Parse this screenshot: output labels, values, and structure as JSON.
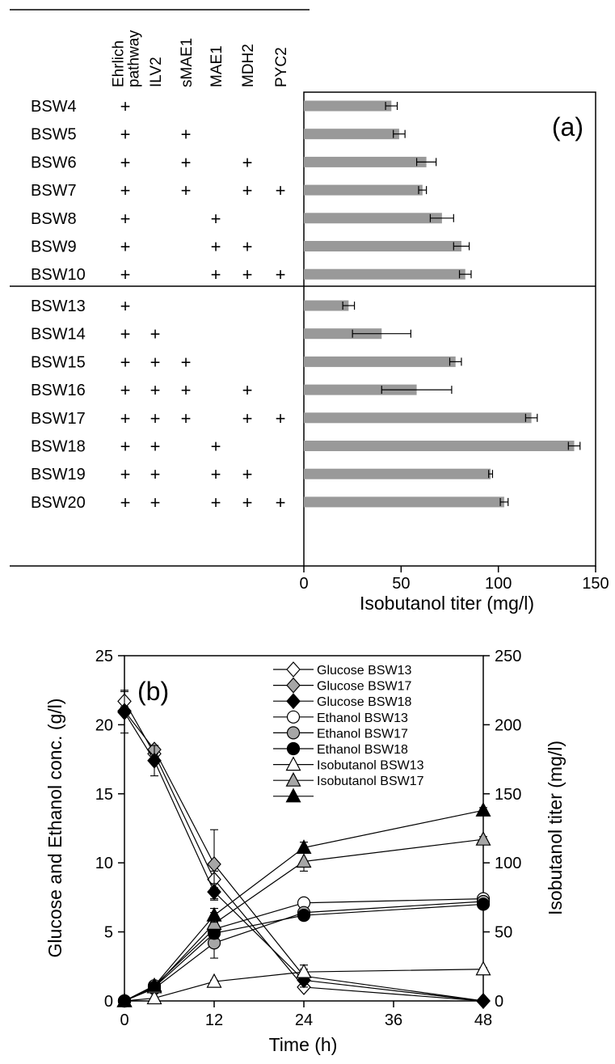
{
  "chart_data": [
    {
      "type": "bar",
      "panel_label": "(a)",
      "orientation": "horizontal",
      "xlabel": "Isobutanol titer (mg/l)",
      "xlim": [
        0,
        150
      ],
      "xticks": [
        0,
        50,
        100,
        150
      ],
      "bar_color": "#999999",
      "gene_columns": [
        "Ehrlich\npathway",
        "ILV2",
        "sMAE1",
        "MAE1",
        "MDH2",
        "PYC2"
      ],
      "mark_symbol": "+",
      "strains": [
        {
          "name": "BSW4",
          "genes": [
            1,
            0,
            0,
            0,
            0,
            0
          ],
          "value": 45,
          "error": 3
        },
        {
          "name": "BSW5",
          "genes": [
            1,
            0,
            1,
            0,
            0,
            0
          ],
          "value": 49,
          "error": 3
        },
        {
          "name": "BSW6",
          "genes": [
            1,
            0,
            1,
            0,
            1,
            0
          ],
          "value": 63,
          "error": 5
        },
        {
          "name": "BSW7",
          "genes": [
            1,
            0,
            1,
            0,
            1,
            1
          ],
          "value": 61,
          "error": 2
        },
        {
          "name": "BSW8",
          "genes": [
            1,
            0,
            0,
            1,
            0,
            0
          ],
          "value": 71,
          "error": 6
        },
        {
          "name": "BSW9",
          "genes": [
            1,
            0,
            0,
            1,
            1,
            0
          ],
          "value": 81,
          "error": 4
        },
        {
          "name": "BSW10",
          "genes": [
            1,
            0,
            0,
            1,
            1,
            1
          ],
          "value": 83,
          "error": 3
        },
        {
          "name": "BSW13",
          "genes": [
            1,
            0,
            0,
            0,
            0,
            0
          ],
          "value": 23,
          "error": 3
        },
        {
          "name": "BSW14",
          "genes": [
            1,
            1,
            0,
            0,
            0,
            0
          ],
          "value": 40,
          "error": 15
        },
        {
          "name": "BSW15",
          "genes": [
            1,
            1,
            1,
            0,
            0,
            0
          ],
          "value": 78,
          "error": 3
        },
        {
          "name": "BSW16",
          "genes": [
            1,
            1,
            1,
            0,
            1,
            0
          ],
          "value": 58,
          "error": 18
        },
        {
          "name": "BSW17",
          "genes": [
            1,
            1,
            1,
            0,
            1,
            1
          ],
          "value": 117,
          "error": 3
        },
        {
          "name": "BSW18",
          "genes": [
            1,
            1,
            0,
            1,
            0,
            0
          ],
          "value": 139,
          "error": 3
        },
        {
          "name": "BSW19",
          "genes": [
            1,
            1,
            0,
            1,
            1,
            0
          ],
          "value": 96,
          "error": 1
        },
        {
          "name": "BSW20",
          "genes": [
            1,
            1,
            0,
            1,
            1,
            1
          ],
          "value": 103,
          "error": 2
        }
      ]
    },
    {
      "type": "line",
      "panel_label": "(b)",
      "xlabel": "Time (h)",
      "ylabel": "Glucose and Ethanol conc. (g/l)",
      "y2label": "Isobutanol titer (mg/l)",
      "xlim": [
        0,
        48
      ],
      "xticks": [
        0,
        12,
        24,
        36,
        48
      ],
      "ylim": [
        0,
        25
      ],
      "yticks": [
        0,
        5,
        10,
        15,
        20,
        25
      ],
      "y2lim": [
        0,
        250
      ],
      "y2ticks": [
        0,
        50,
        100,
        150,
        200,
        250
      ],
      "x": [
        0,
        4,
        12,
        24,
        48
      ],
      "series": [
        {
          "name": "Glucose BSW13",
          "axis": "left",
          "marker": "diamond",
          "fill": "#ffffff",
          "values": [
            21.7,
            17.9,
            8.8,
            1.0,
            0.0
          ],
          "errors": [
            0.8,
            0.3,
            0.6,
            0.2,
            0.0
          ]
        },
        {
          "name": "Glucose BSW17",
          "axis": "left",
          "marker": "diamond",
          "fill": "#a6a6a6",
          "values": [
            21.0,
            18.2,
            9.9,
            1.8,
            0.0
          ],
          "errors": [
            0.3,
            0.3,
            2.5,
            0.8,
            0.0
          ]
        },
        {
          "name": "Glucose BSW18",
          "axis": "left",
          "marker": "diamond",
          "fill": "#000000",
          "values": [
            20.9,
            17.4,
            7.9,
            1.5,
            0.0
          ],
          "errors": [
            1.5,
            1.1,
            0.6,
            0.3,
            0.0
          ]
        },
        {
          "name": "Ethanol BSW13",
          "axis": "left",
          "marker": "circle",
          "fill": "#ffffff",
          "values": [
            0.0,
            1.1,
            5.2,
            7.1,
            7.4
          ],
          "errors": [
            0,
            0.1,
            0.3,
            0.2,
            0.2
          ]
        },
        {
          "name": "Ethanol BSW17",
          "axis": "left",
          "marker": "circle",
          "fill": "#a6a6a6",
          "values": [
            0.0,
            0.9,
            4.2,
            6.4,
            7.2
          ],
          "errors": [
            0,
            0.1,
            1.1,
            0.3,
            0.2
          ]
        },
        {
          "name": "Ethanol BSW18",
          "axis": "left",
          "marker": "circle",
          "fill": "#000000",
          "values": [
            0.0,
            1.0,
            4.9,
            6.2,
            7.0
          ],
          "errors": [
            0,
            0.1,
            0.4,
            0.3,
            0.2
          ]
        },
        {
          "name": "Isobutanol BSW13",
          "axis": "right",
          "marker": "triangle",
          "fill": "#ffffff",
          "values": [
            0,
            2,
            14,
            21,
            23
          ],
          "errors": [
            0,
            0,
            1,
            2,
            1
          ]
        },
        {
          "name": "Isobutanol BSW17",
          "axis": "right",
          "marker": "triangle",
          "fill": "#a6a6a6",
          "values": [
            0,
            10,
            56,
            101,
            117
          ],
          "errors": [
            0,
            1,
            8,
            7,
            2
          ]
        },
        {
          "name": "",
          "axis": "right",
          "marker": "triangle",
          "fill": "#000000",
          "values": [
            0,
            11,
            62,
            111,
            138
          ],
          "errors": [
            0,
            1,
            5,
            4,
            2
          ]
        }
      ]
    }
  ]
}
